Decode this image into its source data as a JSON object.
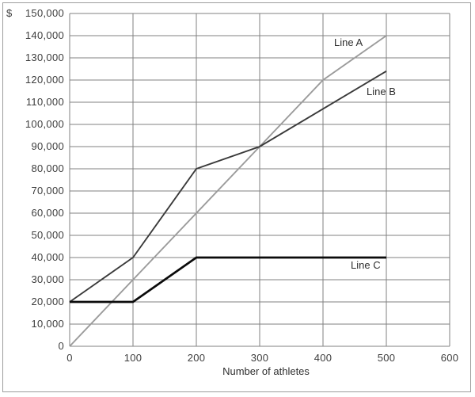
{
  "page": {
    "background": "#ffffff",
    "frame_border_color": "#9d9d9d"
  },
  "chart_data": {
    "type": "line",
    "title": "",
    "xlabel": "Number of athletes",
    "ylabel": "",
    "y_axis_prefix": "$",
    "xlim": [
      0,
      600
    ],
    "ylim": [
      0,
      150000
    ],
    "grid": true,
    "legend_position": "inline-annotations",
    "colors": {
      "grid": "#818181",
      "text": "#3d3d3d"
    },
    "x_ticks": [
      0,
      100,
      200,
      300,
      400,
      500,
      600
    ],
    "x_tick_labels": [
      "0",
      "100",
      "200",
      "300",
      "400",
      "500",
      "600"
    ],
    "y_ticks": [
      0,
      10000,
      20000,
      30000,
      40000,
      50000,
      60000,
      70000,
      80000,
      90000,
      100000,
      110000,
      120000,
      130000,
      140000,
      150000
    ],
    "y_tick_labels": [
      "0",
      "10,000",
      "20,000",
      "30,000",
      "40,000",
      "50,000",
      "60,000",
      "70,000",
      "80,000",
      "90,000",
      "100,000",
      "110,000",
      "120,000",
      "130,000",
      "140,000",
      "150,000"
    ],
    "series": [
      {
        "name": "Line A",
        "color": "#9b9b9b",
        "stroke_width": 1.9,
        "points": [
          [
            0,
            0
          ],
          [
            100,
            30000
          ],
          [
            200,
            60000
          ],
          [
            300,
            90000
          ],
          [
            400,
            120000
          ],
          [
            500,
            140000
          ]
        ]
      },
      {
        "name": "Line B",
        "color": "#3a3a3a",
        "stroke_width": 1.9,
        "points": [
          [
            0,
            20000
          ],
          [
            100,
            40000
          ],
          [
            200,
            80000
          ],
          [
            300,
            90000
          ],
          [
            500,
            124000
          ]
        ]
      },
      {
        "name": "Line C",
        "color": "#0b0b0b",
        "stroke_width": 2.7,
        "points": [
          [
            0,
            20000
          ],
          [
            100,
            20000
          ],
          [
            200,
            40000
          ],
          [
            500,
            40000
          ]
        ]
      }
    ]
  }
}
